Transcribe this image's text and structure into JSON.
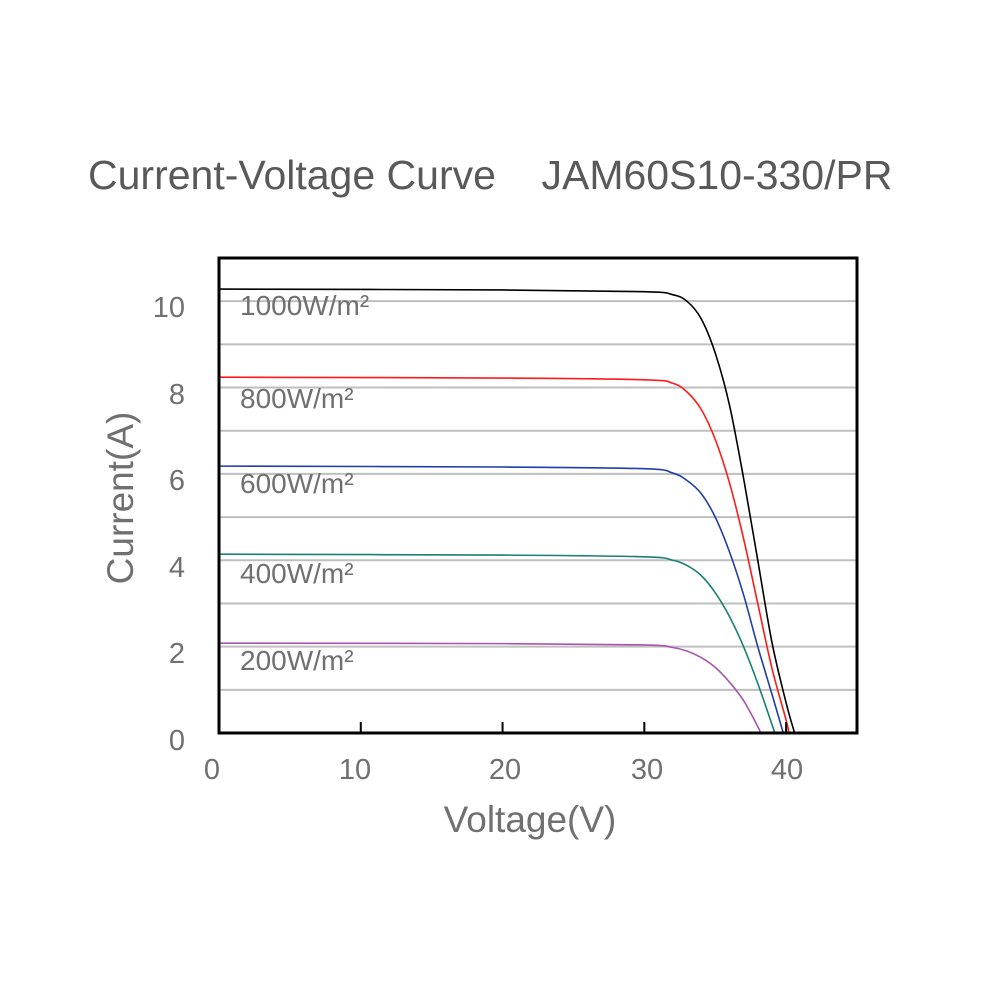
{
  "title": "Current-Voltage Curve    JAM60S10-330/PR",
  "chart_data": {
    "type": "line",
    "title": "Current-Voltage Curve    JAM60S10-330/PR",
    "xlabel": "Voltage(V)",
    "ylabel": "Current(A)",
    "xlim": [
      0,
      45
    ],
    "ylim": [
      0,
      11
    ],
    "x_ticks": [
      0,
      10,
      20,
      30,
      40
    ],
    "y_ticks": [
      0,
      2,
      4,
      6,
      8,
      10
    ],
    "grid": "horizontal, every 1 A",
    "legend": "inline labels",
    "series": [
      {
        "name": "1000W/m²",
        "color": "#000000",
        "isc": 10.28,
        "voc": 40.6,
        "knee_v": 32.5,
        "points": [
          [
            0,
            10.28
          ],
          [
            20,
            10.26
          ],
          [
            30,
            10.22
          ],
          [
            32,
            10.15
          ],
          [
            33,
            10.0
          ],
          [
            34,
            9.6
          ],
          [
            35,
            8.8
          ],
          [
            36,
            7.6
          ],
          [
            37,
            5.9
          ],
          [
            38,
            4.0
          ],
          [
            39,
            2.1
          ],
          [
            40,
            0.7
          ],
          [
            40.6,
            0
          ]
        ]
      },
      {
        "name": "800W/m²",
        "color": "#ff1a1a",
        "isc": 8.24,
        "voc": 40.2,
        "knee_v": 32.5,
        "points": [
          [
            0,
            8.24
          ],
          [
            20,
            8.22
          ],
          [
            30,
            8.18
          ],
          [
            32,
            8.1
          ],
          [
            33,
            7.9
          ],
          [
            34,
            7.5
          ],
          [
            35,
            6.8
          ],
          [
            36,
            5.8
          ],
          [
            37,
            4.5
          ],
          [
            38,
            3.0
          ],
          [
            39,
            1.5
          ],
          [
            40,
            0.3
          ],
          [
            40.2,
            0
          ]
        ]
      },
      {
        "name": "600W/m²",
        "color": "#1f3fa6",
        "isc": 6.18,
        "voc": 39.8,
        "knee_v": 32.0,
        "points": [
          [
            0,
            6.18
          ],
          [
            20,
            6.16
          ],
          [
            30,
            6.12
          ],
          [
            32,
            6.02
          ],
          [
            33,
            5.85
          ],
          [
            34,
            5.55
          ],
          [
            35,
            5.0
          ],
          [
            36,
            4.2
          ],
          [
            37,
            3.2
          ],
          [
            38,
            2.0
          ],
          [
            39,
            0.9
          ],
          [
            39.8,
            0
          ]
        ]
      },
      {
        "name": "400W/m²",
        "color": "#1a7f75",
        "isc": 4.14,
        "voc": 39.2,
        "knee_v": 32.0,
        "points": [
          [
            0,
            4.14
          ],
          [
            20,
            4.12
          ],
          [
            30,
            4.08
          ],
          [
            32,
            4.0
          ],
          [
            33,
            3.88
          ],
          [
            34,
            3.65
          ],
          [
            35,
            3.25
          ],
          [
            36,
            2.7
          ],
          [
            37,
            2.0
          ],
          [
            38,
            1.15
          ],
          [
            39,
            0.2
          ],
          [
            39.2,
            0
          ]
        ]
      },
      {
        "name": "200W/m²",
        "color": "#a855b0",
        "isc": 2.08,
        "voc": 38.2,
        "knee_v": 31.0,
        "points": [
          [
            0,
            2.08
          ],
          [
            20,
            2.07
          ],
          [
            30,
            2.04
          ],
          [
            32,
            1.98
          ],
          [
            33,
            1.9
          ],
          [
            34,
            1.75
          ],
          [
            35,
            1.52
          ],
          [
            36,
            1.18
          ],
          [
            37,
            0.75
          ],
          [
            38,
            0.15
          ],
          [
            38.2,
            0
          ]
        ]
      }
    ]
  },
  "axis": {
    "x_title": "Voltage(V)",
    "y_title": "Current(A)",
    "x_tick_labels": [
      "0",
      "10",
      "20",
      "30",
      "40"
    ],
    "y_tick_labels": [
      "0",
      "2",
      "4",
      "6",
      "8",
      "10"
    ]
  },
  "labels": [
    "1000W/m²",
    "800W/m²",
    "600W/m²",
    "400W/m²",
    "200W/m²"
  ]
}
